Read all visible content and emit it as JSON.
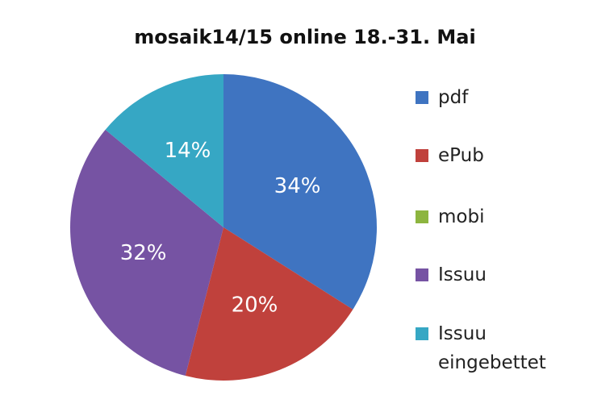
{
  "chart_data": {
    "type": "pie",
    "title": "mosaik14/15 online 18.-31. Mai",
    "categories": [
      "pdf",
      "ePub",
      "mobi",
      "Issuu",
      "Issuu eingebettet"
    ],
    "values": [
      34,
      20,
      0,
      32,
      14
    ],
    "value_labels": [
      "34%",
      "20%",
      null,
      "32%",
      "14%"
    ],
    "colors": [
      "#3f74c1",
      "#c0413c",
      "#8db53f",
      "#7653a3",
      "#36a7c4"
    ],
    "legend": "right"
  }
}
